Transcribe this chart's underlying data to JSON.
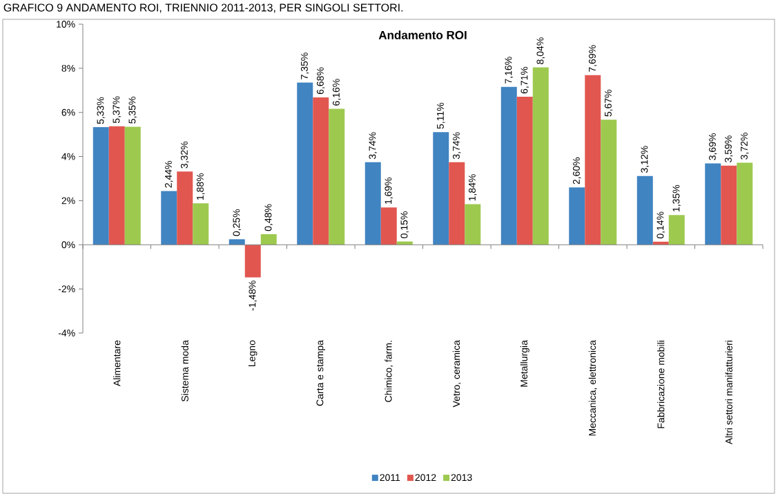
{
  "chart_data": {
    "type": "bar",
    "title": "Andamento ROI",
    "annotations": [
      "GRAFICO 9 ANDAMENTO ROI, TRIENNIO 2011-2013, PER SINGOLI SETTORI."
    ],
    "categories": [
      "Alimentare",
      "Sistema moda",
      "Legno",
      "Carta e stampa",
      "Chimico, farm.",
      "Vetro, ceramica",
      "Metallurgia",
      "Meccanica, elettronica",
      "Fabbricazione mobili",
      "Altri settori manifatturieri"
    ],
    "series": [
      {
        "name": "2011",
        "color": "#4084c2",
        "values": [
          5.33,
          2.44,
          0.25,
          7.35,
          3.74,
          5.11,
          7.16,
          2.6,
          3.12,
          3.69
        ],
        "value_labels": [
          "5,33%",
          "2,44%",
          "0,25%",
          "7,35%",
          "3,74%",
          "5,11%",
          "7,16%",
          "2,60%",
          "3,12%",
          "3,69%"
        ]
      },
      {
        "name": "2012",
        "color": "#e15750",
        "values": [
          5.37,
          3.32,
          -1.48,
          6.68,
          1.69,
          3.74,
          6.71,
          7.69,
          0.14,
          3.59
        ],
        "value_labels": [
          "5,37%",
          "3,32%",
          "-1,48%",
          "6,68%",
          "1,69%",
          "3,74%",
          "6,71%",
          "7,69%",
          "0,14%",
          "3,59%"
        ]
      },
      {
        "name": "2013",
        "color": "#9dc94f",
        "values": [
          5.35,
          1.88,
          0.48,
          6.16,
          0.15,
          1.84,
          8.04,
          5.67,
          1.35,
          3.72
        ],
        "value_labels": [
          "5,35%",
          "1,88%",
          "0,48%",
          "6,16%",
          "0,15%",
          "1,84%",
          "8,04%",
          "5,67%",
          "1,35%",
          "3,72%"
        ]
      }
    ],
    "ylim": [
      -4,
      10
    ],
    "yticks": [
      {
        "value": -4,
        "label": "-4%"
      },
      {
        "value": -2,
        "label": "-2%"
      },
      {
        "value": 0,
        "label": "0%"
      },
      {
        "value": 2,
        "label": "2%"
      },
      {
        "value": 4,
        "label": "4%"
      },
      {
        "value": 6,
        "label": "6%"
      },
      {
        "value": 8,
        "label": "8%"
      },
      {
        "value": 10,
        "label": "10%"
      }
    ],
    "legend": "bottom"
  }
}
